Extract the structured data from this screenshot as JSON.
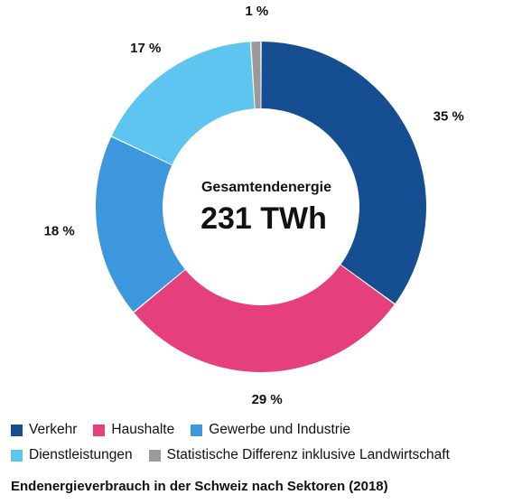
{
  "chart_data": {
    "type": "pie",
    "donut": true,
    "categories": [
      "Verkehr",
      "Haushalte",
      "Gewerbe und Industrie",
      "Dienstleistungen",
      "Statistische Differenz inklusive Landwirtschaft"
    ],
    "values": [
      35,
      29,
      18,
      17,
      1
    ],
    "value_labels": [
      "35 %",
      "29 %",
      "18 %",
      "17 %",
      "1 %"
    ],
    "colors": [
      "#154f91",
      "#e5407b",
      "#3d97dc",
      "#5ec5f0",
      "#9a9a9a"
    ],
    "center_title": "Gesamtendenergie",
    "center_value": "231 TWh",
    "caption": "Endenergieverbrauch in der Schweiz nach Sektoren (2018)",
    "legend_placement": "bottom"
  }
}
